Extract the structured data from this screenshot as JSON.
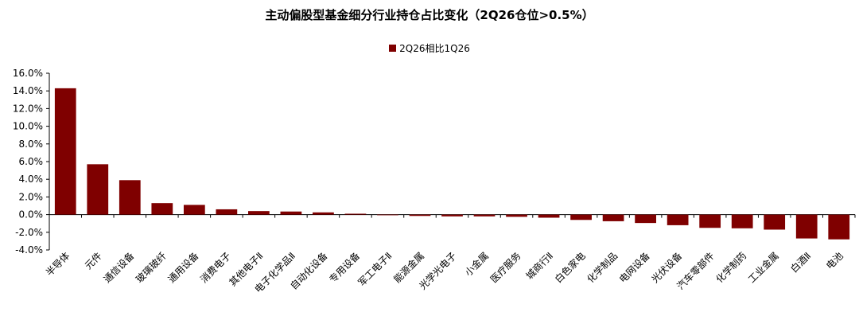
{
  "chart_data": {
    "type": "bar",
    "title": "主动偏股型基金细分行业持仓占比变化（2Q26仓位>0.5%）",
    "xlabel": "",
    "ylabel": "",
    "ylim": [
      -4.0,
      16.0
    ],
    "yticks": [
      "16.0%",
      "14.0%",
      "12.0%",
      "10.0%",
      "8.0%",
      "6.0%",
      "4.0%",
      "2.0%",
      "0.0%",
      "-2.0%",
      "-4.0%"
    ],
    "ytick_values": [
      16,
      14,
      12,
      10,
      8,
      6,
      4,
      2,
      0,
      -2,
      -4
    ],
    "legend_position": "top-center",
    "grid": false,
    "bar_color": "#7f0000",
    "categories": [
      "半导体",
      "元件",
      "通信设备",
      "玻璃玻纤",
      "通用设备",
      "消费电子",
      "其他电子Ⅱ",
      "电子化学品Ⅱ",
      "自动化设备",
      "专用设备",
      "军工电子Ⅱ",
      "能源金属",
      "光学光电子",
      "小金属",
      "医疗服务",
      "城商行Ⅱ",
      "白色家电",
      "化学制品",
      "电网设备",
      "光伏设备",
      "汽车零部件",
      "化学制药",
      "工业金属",
      "白酒Ⅱ",
      "电池"
    ],
    "series": [
      {
        "name": "2Q26相比1Q26",
        "values": [
          14.3,
          5.7,
          3.9,
          1.3,
          1.1,
          0.6,
          0.4,
          0.35,
          0.25,
          0.1,
          -0.05,
          -0.15,
          -0.2,
          -0.2,
          -0.25,
          -0.35,
          -0.6,
          -0.75,
          -0.95,
          -1.2,
          -1.5,
          -1.55,
          -1.7,
          -2.7,
          -2.8
        ]
      }
    ]
  }
}
